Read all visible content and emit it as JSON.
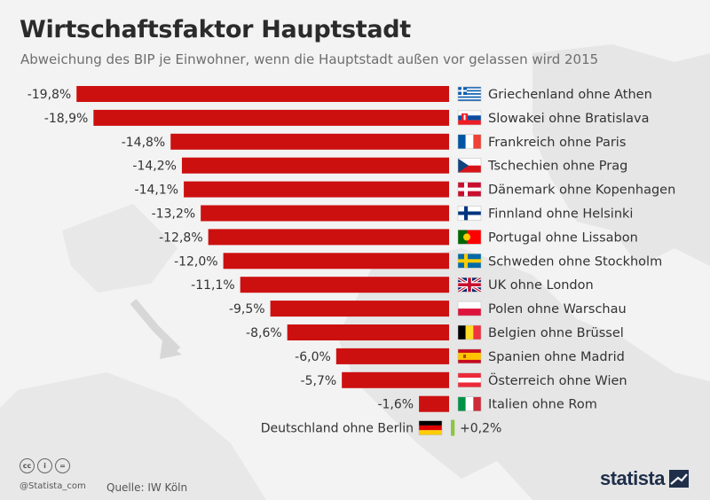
{
  "header": {
    "title": "Wirtschaftsfaktor Hauptstadt",
    "subtitle": "Abweichung des BIP je Einwohner, wenn die Hauptstadt außen vor gelassen wird 2015"
  },
  "colors": {
    "negative_bar": "#cc1010",
    "positive_bar": "#8dc63f",
    "background": "#f3f3f3",
    "map": "#e6e6e6"
  },
  "chart_data": {
    "type": "bar",
    "orientation": "horizontal",
    "unit": "%",
    "categories": [
      "Griechenland ohne Athen",
      "Slowakei ohne Bratislava",
      "Frankreich ohne Paris",
      "Tschechien ohne Prag",
      "Dänemark ohne Kopenhagen",
      "Finnland ohne Helsinki",
      "Portugal ohne Lissabon",
      "Schweden ohne Stockholm",
      "UK ohne London",
      "Polen ohne Warschau",
      "Belgien ohne Brüssel",
      "Spanien ohne Madrid",
      "Österreich ohne Wien",
      "Italien ohne Rom",
      "Deutschland ohne Berlin"
    ],
    "values": [
      -19.8,
      -18.9,
      -14.8,
      -14.2,
      -14.1,
      -13.2,
      -12.8,
      -12.0,
      -11.1,
      -9.5,
      -8.6,
      -6.0,
      -5.7,
      -1.6,
      0.2
    ],
    "value_labels": [
      "-19,8%",
      "-18,9%",
      "-14,8%",
      "-14,2%",
      "-14,1%",
      "-13,2%",
      "-12,8%",
      "-12,0%",
      "-11,1%",
      "-9,5%",
      "-8,6%",
      "-6,0%",
      "-5,7%",
      "-1,6%",
      "+0,2%"
    ],
    "flags": [
      "gr",
      "sk",
      "fr",
      "cz",
      "dk",
      "fi",
      "pt",
      "se",
      "uk",
      "pl",
      "be",
      "es",
      "at",
      "it",
      "de"
    ]
  },
  "footer": {
    "handle": "@Statista_com",
    "source": "Quelle: IW Köln",
    "brand": "statista",
    "license_icons": [
      "cc-icon",
      "by-icon",
      "nd-icon"
    ],
    "license_glyphs": [
      "cc",
      "i",
      "="
    ]
  }
}
